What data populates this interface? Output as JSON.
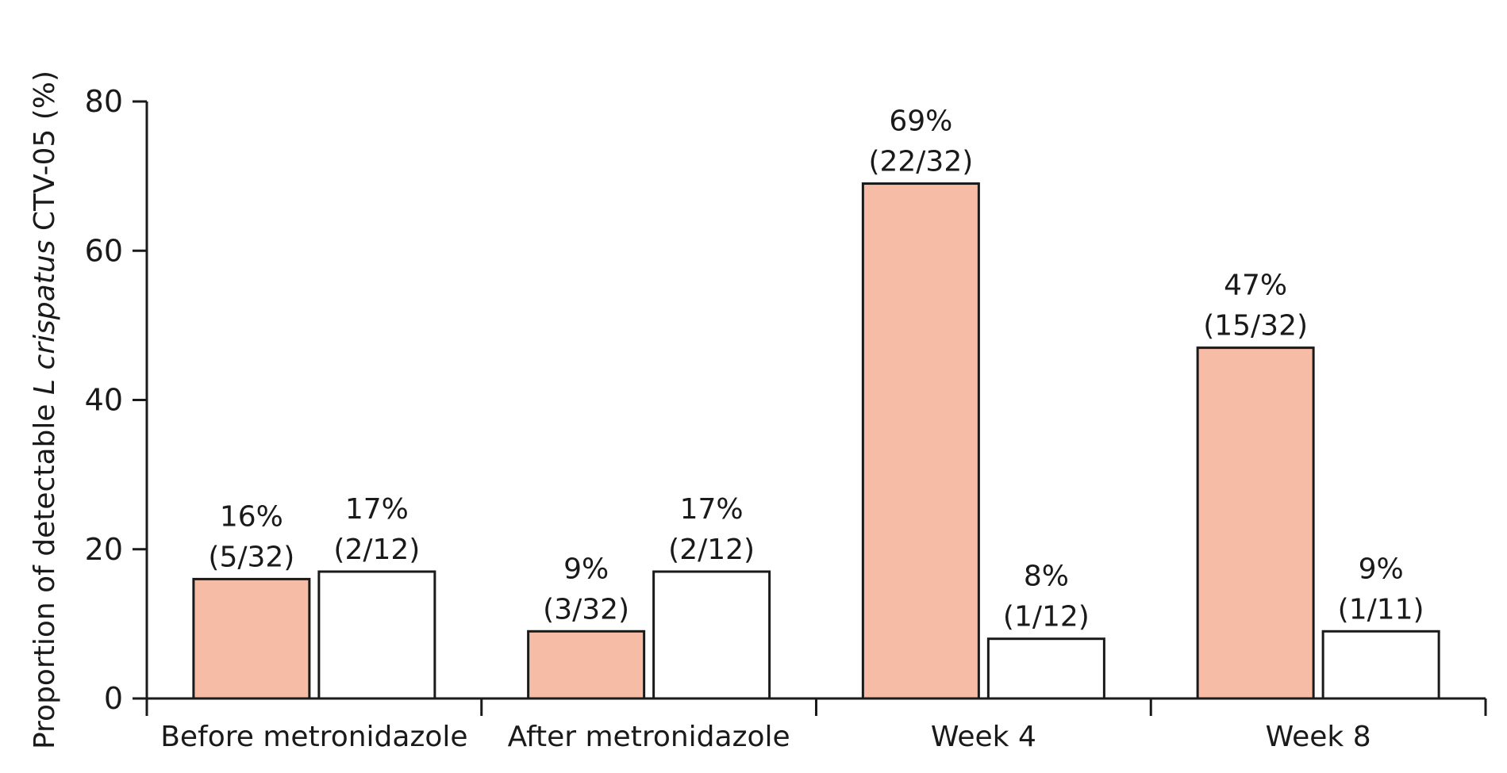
{
  "chart_data": {
    "type": "bar",
    "categories": [
      "Before metronidazole",
      "After metronidazole",
      "Week 4",
      "Week 8"
    ],
    "ylabel_prefix": "Proportion of detectable ",
    "ylabel_italic": "L crispatus",
    "ylabel_suffix": " CTV-05 (%)",
    "ylim": [
      0,
      80
    ],
    "yticks": [
      "0",
      "20",
      "40",
      "60",
      "80"
    ],
    "series": [
      {
        "color": "#f7bca6",
        "values": [
          16,
          9,
          69,
          47
        ],
        "labels_pct": [
          "16%",
          "9%",
          "69%",
          "47%"
        ],
        "labels_frac": [
          "(5/32)",
          "(3/32)",
          "(22/32)",
          "(15/32)"
        ]
      },
      {
        "color": "#ffffff",
        "values": [
          17,
          17,
          8,
          9
        ],
        "labels_pct": [
          "17%",
          "17%",
          "8%",
          "9%"
        ],
        "labels_frac": [
          "(2/12)",
          "(2/12)",
          "(1/12)",
          "(1/11)"
        ]
      }
    ],
    "grid": false,
    "legend": "none"
  }
}
